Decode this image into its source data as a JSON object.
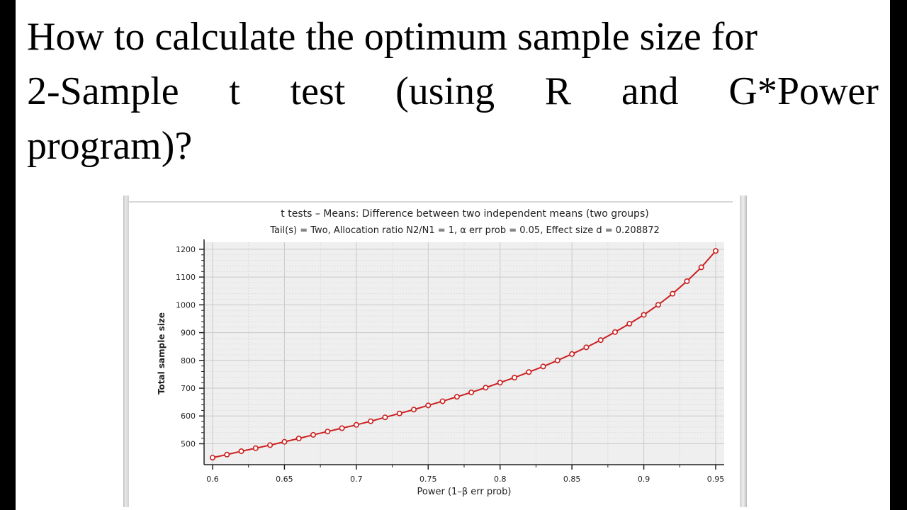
{
  "heading": {
    "line1": "How to calculate the optimum sample size for",
    "line2_words": [
      "2-Sample",
      "t",
      "test",
      "(using",
      "R",
      "and",
      "G*Power"
    ],
    "line3": "program)?"
  },
  "chart_data": {
    "type": "line",
    "title": "t tests – Means: Difference between two independent means (two groups)",
    "subtitle": "Tail(s) = Two, Allocation ratio N2/N1 = 1, α err prob = 0.05, Effect size d = 0.208872",
    "xlabel": "Power (1–β err prob)",
    "ylabel": "Total sample size",
    "xlim": [
      0.6,
      0.95
    ],
    "ylim": [
      440,
      1210
    ],
    "xticks": [
      "0.6",
      "0.65",
      "0.7",
      "0.75",
      "0.8",
      "0.85",
      "0.9",
      "0.95"
    ],
    "yticks": [
      "500",
      "600",
      "700",
      "800",
      "900",
      "1000",
      "1100",
      "1200"
    ],
    "grid": true,
    "line_color": "#cc1f1f",
    "series": [
      {
        "x": [
          0.6,
          0.61,
          0.62,
          0.63,
          0.64,
          0.65,
          0.66,
          0.67,
          0.68,
          0.69,
          0.7,
          0.71,
          0.72,
          0.73,
          0.74,
          0.75,
          0.76,
          0.77,
          0.78,
          0.79,
          0.8,
          0.81,
          0.82,
          0.83,
          0.84,
          0.85,
          0.86,
          0.87,
          0.88,
          0.89,
          0.9,
          0.91,
          0.92,
          0.93,
          0.94,
          0.95
        ],
        "values": [
          450,
          461,
          473,
          484,
          495,
          507,
          519,
          532,
          544,
          556,
          568,
          581,
          595,
          609,
          623,
          638,
          653,
          669,
          685,
          702,
          720,
          738,
          758,
          778,
          800,
          823,
          847,
          873,
          902,
          932,
          964,
          1000,
          1040,
          1085,
          1135,
          1194
        ]
      }
    ]
  }
}
